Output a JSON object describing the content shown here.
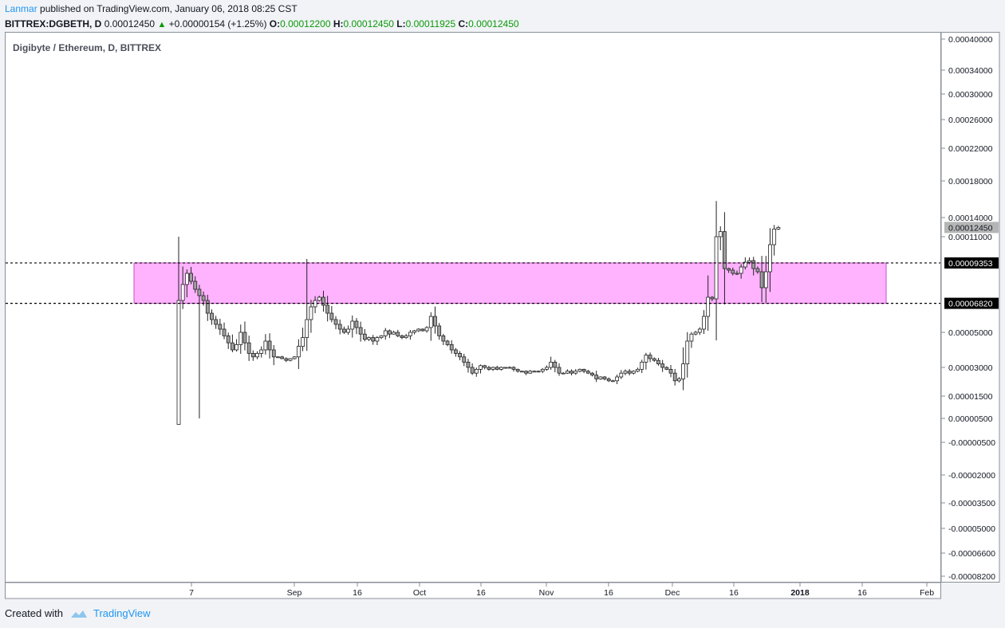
{
  "header": {
    "author": "Lanmar",
    "published_text": "published on TradingView.com, January 06, 2018 08:25 CST"
  },
  "quote": {
    "symbol": "BITTREX:DGBETH, D",
    "last": "0.00012450",
    "change": "+0.00000154 (+1.25%)",
    "o_label": "O:",
    "o": "0.00012200",
    "h_label": "H:",
    "h": "0.00012450",
    "l_label": "L:",
    "l": "0.00011925",
    "c_label": "C:",
    "c": "0.00012450"
  },
  "chart_data": {
    "type": "candlestick",
    "title": "Digibyte / Ethereum, D, BITTREX",
    "y_ticks": [
      {
        "label": "0.00040000",
        "value": 0.0004
      },
      {
        "label": "0.00034000",
        "value": 0.00034
      },
      {
        "label": "0.00030000",
        "value": 0.0003
      },
      {
        "label": "0.00026000",
        "value": 0.00026
      },
      {
        "label": "0.00022000",
        "value": 0.00022
      },
      {
        "label": "0.00018000",
        "value": 0.00018
      },
      {
        "label": "0.00014000",
        "value": 0.00014
      },
      {
        "label": "0.00011000",
        "value": 0.00011
      },
      {
        "label": "0.00005000",
        "value": 5e-05
      },
      {
        "label": "0.00003000",
        "value": 3e-05
      },
      {
        "label": "0.00001500",
        "value": 1.5e-05
      },
      {
        "label": "0.00000500",
        "value": 5e-06
      },
      {
        "label": "-0.00000500",
        "value": -5e-06
      },
      {
        "label": "-0.00002000",
        "value": -2e-05
      },
      {
        "label": "-0.00003500",
        "value": -3.5e-05
      },
      {
        "label": "-0.00005000",
        "value": -5e-05
      },
      {
        "label": "-0.00006600",
        "value": -6.6e-05
      },
      {
        "label": "-0.00008200",
        "value": -8.2e-05
      }
    ],
    "x_ticks": [
      "7",
      "Sep",
      "16",
      "Oct",
      "16",
      "Nov",
      "16",
      "Dec",
      "16",
      "2018",
      "16",
      "Feb"
    ],
    "price_labels": {
      "last": {
        "label": "0.00012450",
        "value": 0.0001245
      },
      "resistance": {
        "label": "0.00009353",
        "value": 9.353e-05
      },
      "support": {
        "label": "0.00006820",
        "value": 6.82e-05
      }
    },
    "zone": {
      "from": 6.82e-05,
      "to": 9.353e-05,
      "color": "#ffb3ff"
    },
    "closes": [
      7e-05,
      8e-05,
      8.7e-05,
      8.2e-05,
      7.7e-05,
      7.3e-05,
      7e-05,
      6.2e-05,
      5.8e-05,
      5.5e-05,
      5.2e-05,
      4.8e-05,
      4.4e-05,
      4e-05,
      4.3e-05,
      5e-05,
      4.4e-05,
      3.8e-05,
      3.6e-05,
      3.8e-05,
      4e-05,
      4.5e-05,
      4e-05,
      3.6e-05,
      3.6e-05,
      3.5e-05,
      3.4e-05,
      3.5e-05,
      3.6e-05,
      4.2e-05,
      4.7e-05,
      5.8e-05,
      6.6e-05,
      7e-05,
      7.2e-05,
      6.7e-05,
      6.2e-05,
      5.8e-05,
      5.5e-05,
      5.2e-05,
      5e-05,
      5.2e-05,
      5.7e-05,
      5.3e-05,
      4.9e-05,
      4.6e-05,
      4.7e-05,
      4.5e-05,
      4.7e-05,
      4.8e-05,
      5.1e-05,
      4.9e-05,
      5e-05,
      4.8e-05,
      4.7e-05,
      4.8e-05,
      5e-05,
      5.1e-05,
      5.2e-05,
      5.1e-05,
      5.3e-05,
      6e-05,
      5.4e-05,
      4.8e-05,
      4.5e-05,
      4.3e-05,
      4e-05,
      3.8e-05,
      3.6e-05,
      3.3e-05,
      3e-05,
      2.7e-05,
      2.9e-05,
      3.1e-05,
      3e-05,
      2.9e-05,
      3e-05,
      2.9e-05,
      3e-05,
      3e-05,
      3e-05,
      2.9e-05,
      2.8e-05,
      2.8e-05,
      2.7e-05,
      2.8e-05,
      2.8e-05,
      2.8e-05,
      2.9e-05,
      3e-05,
      3.3e-05,
      3e-05,
      2.7e-05,
      2.7e-05,
      2.8e-05,
      2.7e-05,
      2.8e-05,
      2.9e-05,
      2.8e-05,
      2.7e-05,
      2.6e-05,
      2.4e-05,
      2.5e-05,
      2.4e-05,
      2.3e-05,
      2.3e-05,
      2.5e-05,
      2.7e-05,
      2.8e-05,
      2.7e-05,
      2.8e-05,
      2.9e-05,
      3.3e-05,
      3.7e-05,
      3.5e-05,
      3.4e-05,
      3.2e-05,
      3e-05,
      2.9e-05,
      2.7e-05,
      2.3e-05,
      2.4e-05,
      3.2e-05,
      4.5e-05,
      4.9e-05,
      5e-05,
      5.2e-05,
      6e-05,
      7.2e-05,
      7.1e-05,
      0.00011,
      0.000118,
      9e-05,
      8.9e-05,
      8.7e-05,
      8.7e-05,
      9.1e-05,
      9.4e-05,
      9.5e-05,
      9e-05,
      8.8e-05,
      7.8e-05,
      8.8e-05,
      0.000105,
      0.000122,
      0.0001245
    ]
  },
  "footer": {
    "created_with": "Created with",
    "brand": "TradingView",
    "icon": "tradingview-cloud-icon"
  }
}
